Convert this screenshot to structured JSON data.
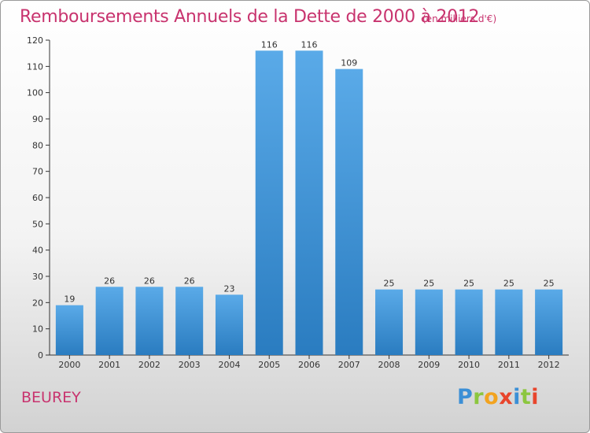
{
  "header": {
    "title": "Remboursements Annuels de la Dette de 2000 à 2012",
    "subtitle": "(en milliers d'€)"
  },
  "footer": {
    "commune": "BEUREY",
    "logo_text": "Proxiti"
  },
  "colors": {
    "title": "#c8336e",
    "bar_light": "#5aaae8",
    "bar_dark": "#2a7cc0",
    "axis": "#333333"
  },
  "chart_data": {
    "type": "bar",
    "categories": [
      "2000",
      "2001",
      "2002",
      "2003",
      "2004",
      "2005",
      "2006",
      "2007",
      "2008",
      "2009",
      "2010",
      "2011",
      "2012"
    ],
    "values": [
      19,
      26,
      26,
      26,
      23,
      116,
      116,
      109,
      25,
      25,
      25,
      25,
      25
    ],
    "data_labels": [
      "19",
      "26",
      "26",
      "26",
      "23",
      "116",
      "116",
      "109",
      "25",
      "25",
      "25",
      "25",
      "25"
    ],
    "title": "Remboursements Annuels de la Dette de 2000 à 2012",
    "unit_label": "(en milliers d'€)",
    "xlabel": "",
    "ylabel": "",
    "ylim": [
      0,
      120
    ],
    "yticks": [
      0,
      10,
      20,
      30,
      40,
      50,
      60,
      70,
      80,
      90,
      100,
      110,
      120
    ],
    "grid": false,
    "legend": "none"
  }
}
